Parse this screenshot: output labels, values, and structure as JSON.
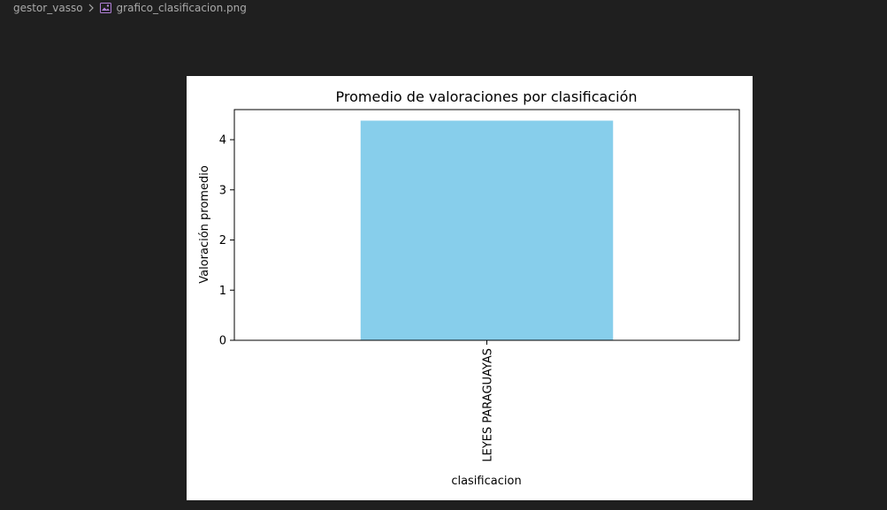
{
  "breadcrumb": {
    "folder": "gestor_vasso",
    "file": "grafico_clasificacion.png",
    "folder_icon": "chevron-right-icon",
    "file_icon": "image-file-icon"
  },
  "colors": {
    "background": "#1f1f1f",
    "bar": "#87ceeb",
    "file_icon": "#b180d7"
  },
  "chart_data": {
    "type": "bar",
    "title": "Promedio de valoraciones por clasificación",
    "xlabel": "clasificacion",
    "ylabel": "Valoración promedio",
    "categories": [
      "LEYES PARAGUAYAS"
    ],
    "values": [
      4.38
    ],
    "ylim": [
      0,
      4.6
    ],
    "yticks": [
      0,
      1,
      2,
      3,
      4
    ],
    "grid": false,
    "bar_color": "#87ceeb"
  }
}
